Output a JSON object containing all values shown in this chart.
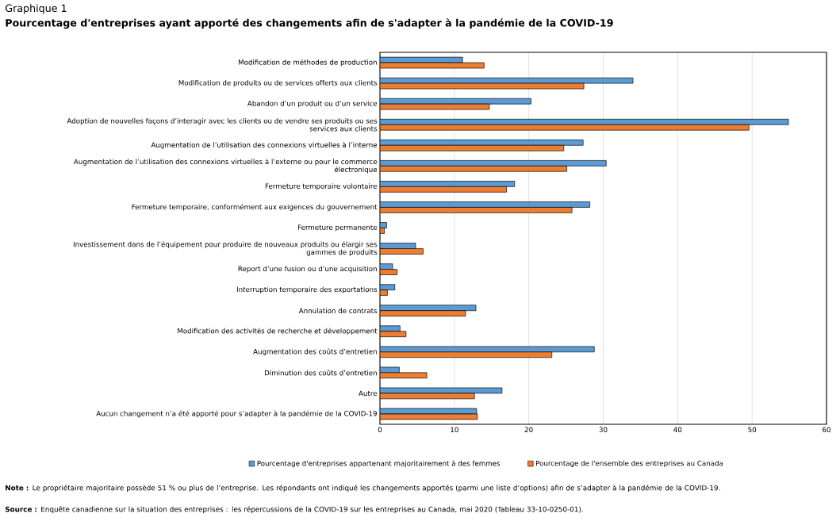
{
  "chart_data": {
    "type": "bar",
    "orientation": "horizontal",
    "title": "Graphique 1",
    "subtitle": "Pourcentage d'entreprises ayant apporté des changements afin de s'adapter à la pandémie de la COVID-19",
    "categories": [
      "Modification de méthodes de production",
      "Modification de produits ou de services offerts aux clients",
      "Abandon d’un produit ou d’un service",
      "Adoption de nouvelles façons d’interagir avec les clients ou de vendre ses produits ou ses services aux clients",
      "Augmentation de l’utilisation des connexions virtuelles à l’interne",
      "Augmentation de l’utilisation des connexions virtuelles à l’externe ou pour le commerce électronique",
      "Fermeture temporaire volontaire",
      "Fermeture temporaire, conformément aux exigences du gouvernement",
      "Fermeture permanente",
      "Investissement dans de l’équipement pour produire de nouveaux produits ou élargir ses gammes de produits",
      "Report d’une fusion ou d’une acquisition",
      "Interruption temporaire des exportations",
      "Annulation de contrats",
      "Modification des activités de recherche et développement",
      "Augmentation des coûts d’entretien",
      "Diminution des coûts d’entretien",
      "Autre",
      "Aucun changement n’a été apporté pour s’adapter à la pandémie de la COVID-19"
    ],
    "series": [
      {
        "name": "Pourcentage d'entreprises appartenant majoritairement à des femmes",
        "color": "#5b9bd5",
        "values": [
          11.1,
          34.0,
          20.3,
          54.9,
          27.3,
          30.4,
          18.1,
          28.2,
          0.9,
          4.8,
          1.7,
          2.0,
          12.9,
          2.7,
          28.8,
          2.6,
          16.4,
          13.0
        ]
      },
      {
        "name": "Pourcentage de l'ensemble des entreprises au Canada",
        "color": "#ed7d31",
        "values": [
          14.0,
          27.4,
          14.7,
          49.6,
          24.7,
          25.1,
          17.0,
          25.8,
          0.6,
          5.8,
          2.3,
          1.0,
          11.5,
          3.5,
          23.1,
          6.3,
          12.7,
          13.1
        ]
      }
    ],
    "xlim": [
      0,
      60
    ],
    "xticks": [
      0,
      10,
      20,
      30,
      40,
      50,
      60
    ],
    "grid": "x",
    "legend": "bottom",
    "annotations": [
      "**Note :** Le propriétaire majoritaire possède 51 % ou plus de l’entreprise. Les répondants ont indiqué les changements apportés (parmi une liste d’options) afin de s’adapter à la pandémie de la COVID-19.",
      "**Source :** Enquête canadienne sur la situation des entreprises : les répercussions de la COVID-19 sur les entreprises au Canada, mai 2020 (Tableau 33-10-0250-01)."
    ]
  }
}
